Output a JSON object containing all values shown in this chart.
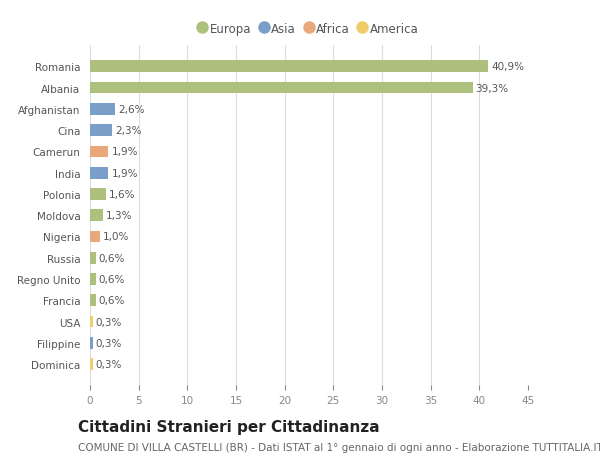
{
  "countries": [
    "Romania",
    "Albania",
    "Afghanistan",
    "Cina",
    "Camerun",
    "India",
    "Polonia",
    "Moldova",
    "Nigeria",
    "Russia",
    "Regno Unito",
    "Francia",
    "USA",
    "Filippine",
    "Dominica"
  ],
  "values": [
    40.9,
    39.3,
    2.6,
    2.3,
    1.9,
    1.9,
    1.6,
    1.3,
    1.0,
    0.6,
    0.6,
    0.6,
    0.3,
    0.3,
    0.3
  ],
  "labels": [
    "40,9%",
    "39,3%",
    "2,6%",
    "2,3%",
    "1,9%",
    "1,9%",
    "1,6%",
    "1,3%",
    "1,0%",
    "0,6%",
    "0,6%",
    "0,6%",
    "0,3%",
    "0,3%",
    "0,3%"
  ],
  "continents": [
    "Europa",
    "Europa",
    "Asia",
    "Asia",
    "Africa",
    "Asia",
    "Europa",
    "Europa",
    "Africa",
    "Europa",
    "Europa",
    "Europa",
    "America",
    "Asia",
    "America"
  ],
  "colors": {
    "Europa": "#aec07e",
    "Asia": "#7a9ec8",
    "Africa": "#e8a87c",
    "America": "#f0cc6a"
  },
  "legend_colors": {
    "Europa": "#aec07e",
    "Asia": "#7a9ec8",
    "Africa": "#e8a87c",
    "America": "#f0cc6a"
  },
  "xlim": [
    0,
    45
  ],
  "xticks": [
    0,
    5,
    10,
    15,
    20,
    25,
    30,
    35,
    40,
    45
  ],
  "title": "Cittadini Stranieri per Cittadinanza",
  "subtitle": "COMUNE DI VILLA CASTELLI (BR) - Dati ISTAT al 1° gennaio di ogni anno - Elaborazione TUTTITALIA.IT",
  "background_color": "#ffffff",
  "bar_height": 0.55,
  "title_fontsize": 11,
  "subtitle_fontsize": 7.5,
  "label_fontsize": 7.5,
  "tick_fontsize": 7.5,
  "legend_fontsize": 8.5
}
